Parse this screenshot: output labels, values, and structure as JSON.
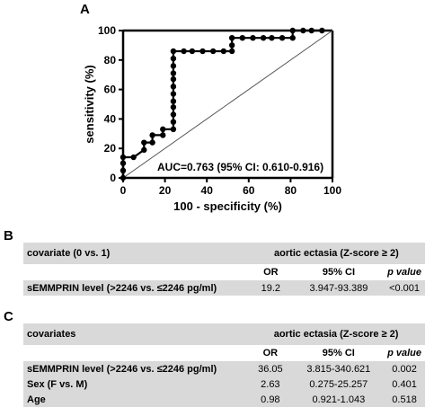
{
  "panels": {
    "a": "A",
    "b": "B",
    "c": "C"
  },
  "chart_data": {
    "type": "line",
    "xlabel": "100 - specificity (%)",
    "ylabel": "sensitivity (%)",
    "xlim": [
      0,
      100
    ],
    "ylim": [
      0,
      100
    ],
    "xticks": [
      "0",
      "20",
      "40",
      "60",
      "80",
      "100"
    ],
    "yticks": [
      "0",
      "20",
      "40",
      "60",
      "80",
      "100"
    ],
    "annotation": "AUC=0.763 (95% CI: 0.610-0.916)",
    "reference_line": [
      [
        0,
        0
      ],
      [
        100,
        100
      ]
    ],
    "points": [
      [
        0,
        0
      ],
      [
        0,
        5
      ],
      [
        0,
        10
      ],
      [
        0,
        14
      ],
      [
        5,
        14
      ],
      [
        10,
        19
      ],
      [
        10,
        24
      ],
      [
        14,
        24
      ],
      [
        14,
        29
      ],
      [
        19,
        29
      ],
      [
        19,
        33
      ],
      [
        24,
        33
      ],
      [
        24,
        38
      ],
      [
        24,
        43
      ],
      [
        24,
        48
      ],
      [
        24,
        52
      ],
      [
        24,
        57
      ],
      [
        24,
        62
      ],
      [
        24,
        67
      ],
      [
        24,
        71
      ],
      [
        24,
        76
      ],
      [
        24,
        81
      ],
      [
        24,
        86
      ],
      [
        29,
        86
      ],
      [
        33,
        86
      ],
      [
        38,
        86
      ],
      [
        43,
        86
      ],
      [
        48,
        86
      ],
      [
        52,
        86
      ],
      [
        52,
        90
      ],
      [
        52,
        95
      ],
      [
        57,
        95
      ],
      [
        62,
        95
      ],
      [
        67,
        95
      ],
      [
        71,
        95
      ],
      [
        76,
        95
      ],
      [
        81,
        95
      ],
      [
        81,
        100
      ],
      [
        86,
        100
      ],
      [
        90,
        100
      ],
      [
        95,
        100
      ]
    ]
  },
  "table_b": {
    "header": [
      "covariate (0 vs. 1)",
      "aortic ectasia (Z-score ≥ 2)"
    ],
    "columns": [
      "OR",
      "95% CI",
      "p value"
    ],
    "rows": [
      [
        "sEMMPRIN  level (>2246 vs. ≤2246 pg/ml)",
        "19.2",
        "3.947-93.389",
        "<0.001"
      ]
    ]
  },
  "table_c": {
    "header": [
      "covariates",
      "aortic ectasia (Z-score ≥ 2)"
    ],
    "columns": [
      "OR",
      "95% CI",
      "p value"
    ],
    "rows": [
      [
        "sEMMPRIN  level (>2246 vs. ≤2246 pg/ml)",
        "36.05",
        "3.815-340.621",
        "0.002"
      ],
      [
        "Sex (F vs. M)",
        "2.63",
        "0.275-25.257",
        "0.401"
      ],
      [
        "Age",
        "0.98",
        "0.921-1.043",
        "0.518"
      ]
    ]
  }
}
